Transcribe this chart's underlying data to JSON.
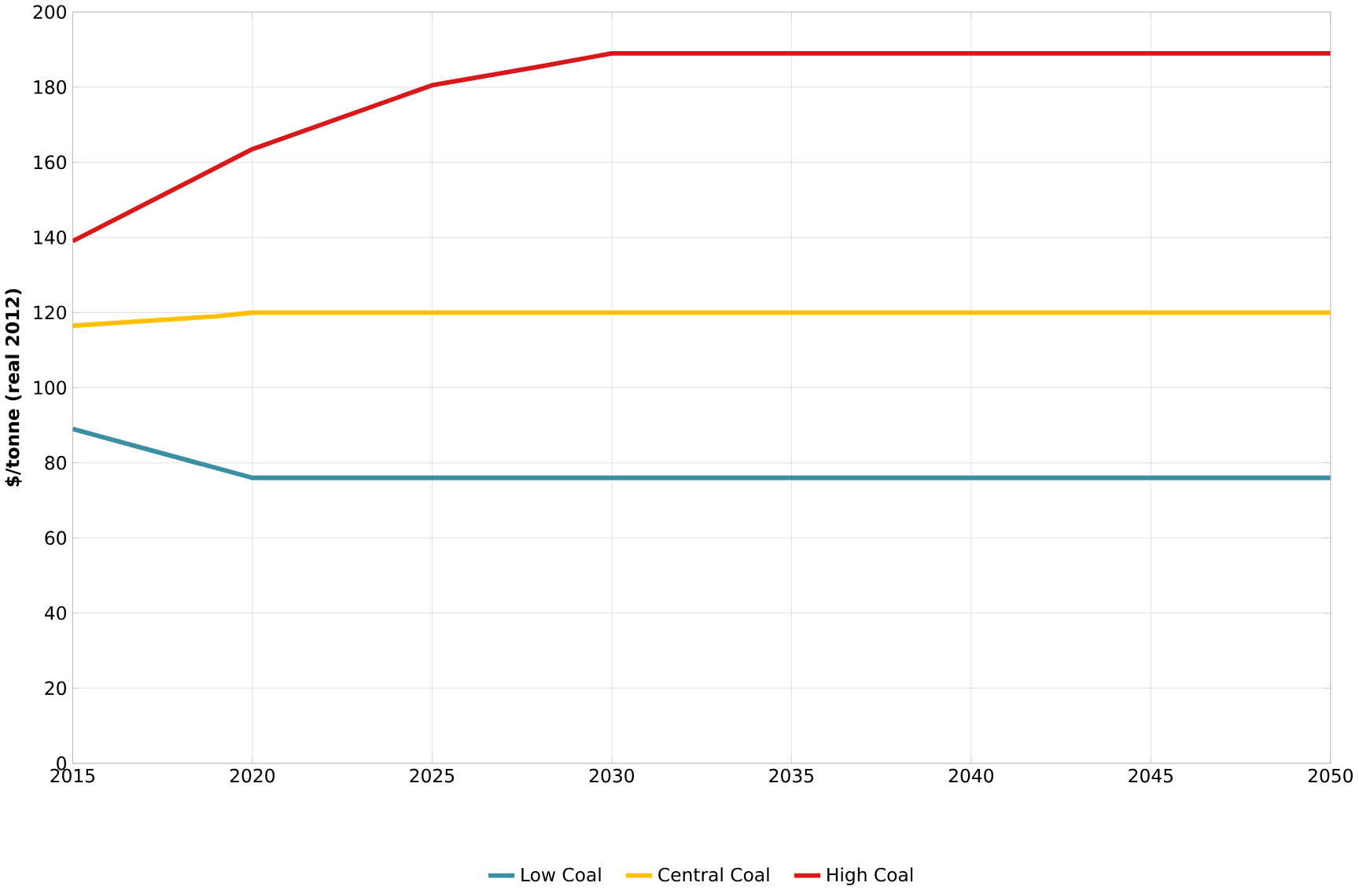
{
  "chart_data": {
    "type": "line",
    "ylabel": "$/tonne (real 2012)",
    "xlim": [
      2015,
      2050
    ],
    "ylim": [
      0,
      200
    ],
    "xticks": [
      2015,
      2020,
      2025,
      2030,
      2035,
      2040,
      2045,
      2050
    ],
    "yticks": [
      0,
      20,
      40,
      60,
      80,
      100,
      120,
      140,
      160,
      180,
      200
    ],
    "grid": true,
    "legend": "bottom",
    "marker": "none",
    "line_style": "solid",
    "series": [
      {
        "name": "Low Coal",
        "color": "#3a8fa3",
        "x": [
          2015,
          2020,
          2025,
          2030,
          2035,
          2040,
          2045,
          2050
        ],
        "values": [
          89,
          76,
          76,
          76,
          76,
          76,
          76,
          76
        ]
      },
      {
        "name": "Central Coal",
        "color": "#ffc000",
        "x": [
          2015,
          2019,
          2020,
          2025,
          2030,
          2035,
          2040,
          2045,
          2050
        ],
        "values": [
          116.5,
          119,
          120,
          120,
          120,
          120,
          120,
          120,
          120
        ]
      },
      {
        "name": "High Coal",
        "color": "#d7191c",
        "x": [
          2015,
          2020,
          2025,
          2028,
          2030,
          2035,
          2040,
          2045,
          2050
        ],
        "values": [
          139,
          163.5,
          180.5,
          185.5,
          189,
          189,
          189,
          189,
          189
        ]
      }
    ]
  }
}
